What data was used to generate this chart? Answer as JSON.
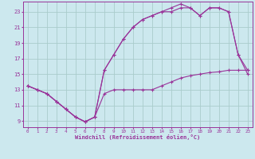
{
  "xlabel": "Windchill (Refroidissement éolien,°C)",
  "bg_color": "#cce8ee",
  "line_color": "#993399",
  "xlim": [
    -0.5,
    23.5
  ],
  "ylim": [
    8.2,
    24.3
  ],
  "xticks": [
    0,
    1,
    2,
    3,
    4,
    5,
    6,
    7,
    8,
    9,
    10,
    11,
    12,
    13,
    14,
    15,
    16,
    17,
    18,
    19,
    20,
    21,
    22,
    23
  ],
  "yticks": [
    9,
    11,
    13,
    15,
    17,
    19,
    21,
    23
  ],
  "line1_y": [
    13.5,
    13.0,
    12.5,
    11.5,
    10.5,
    9.5,
    8.9,
    9.5,
    15.5,
    17.5,
    19.5,
    21.0,
    22.0,
    22.5,
    23.0,
    23.0,
    23.5,
    23.5,
    22.5,
    23.5,
    23.5,
    23.0,
    17.5,
    15.5
  ],
  "line2_y": [
    13.5,
    13.0,
    12.5,
    11.5,
    10.5,
    9.5,
    8.9,
    9.5,
    15.5,
    17.5,
    19.5,
    21.0,
    22.0,
    22.5,
    23.0,
    23.5,
    24.0,
    23.5,
    22.5,
    23.5,
    23.5,
    23.0,
    17.5,
    15.0
  ],
  "line3_y": [
    13.5,
    13.0,
    12.5,
    11.5,
    10.5,
    9.5,
    8.9,
    9.5,
    12.5,
    13.0,
    13.0,
    13.0,
    13.0,
    13.0,
    13.5,
    14.0,
    14.5,
    14.8,
    15.0,
    15.2,
    15.3,
    15.5,
    15.5,
    15.5
  ]
}
